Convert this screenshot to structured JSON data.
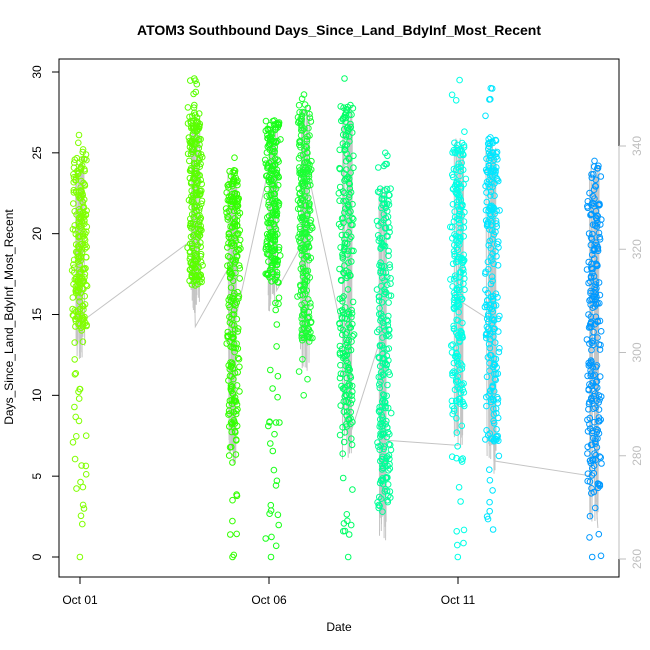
{
  "chart_data": {
    "type": "scatter",
    "title": "ATOM3 Southbound Days_Since_Land_BdyInf_Most_Recent",
    "xlabel": "Date",
    "ylabel": "Days_Since_Land_BdyInf_Most_Recent",
    "xlim": [
      "2023-10-01",
      "2023-10-15"
    ],
    "ylim": [
      0,
      30
    ],
    "y_ticks": [
      0,
      5,
      10,
      15,
      20,
      25,
      30
    ],
    "x_ticks": [
      {
        "date": "2023-10-01",
        "label": "Oct 01"
      },
      {
        "date": "2023-10-06",
        "label": "Oct 06"
      },
      {
        "date": "2023-10-11",
        "label": "Oct 11"
      }
    ],
    "y2lim": [
      260,
      342
    ],
    "y2_ticks": [
      260,
      280,
      300,
      320,
      340
    ],
    "secondary_line_color": "#c4c4c4",
    "grid": false,
    "clusters": [
      {
        "date": "2023-10-01",
        "color": "#80ff00",
        "y_min": 0,
        "y_max": 26.1,
        "dense_min": 14,
        "dense_max": 25
      },
      {
        "date": "2023-10-04.05",
        "color": "#5aff00",
        "y_min": 16.8,
        "y_max": 29.6,
        "dense_min": 17,
        "dense_max": 27
      },
      {
        "date": "2023-10-05.05",
        "color": "#33ff00",
        "y_min": 0,
        "y_max": 24.7,
        "dense_min": 7.5,
        "dense_max": 24
      },
      {
        "date": "2023-10-06.1",
        "color": "#1aff1a",
        "y_min": 0,
        "y_max": 27,
        "dense_min": 17,
        "dense_max": 27
      },
      {
        "date": "2023-10-06.95",
        "color": "#1aff33",
        "y_min": 10,
        "y_max": 28.6,
        "dense_min": 13.5,
        "dense_max": 28
      },
      {
        "date": "2023-10-08.05",
        "color": "#00ff66",
        "y_min": 0,
        "y_max": 29.6,
        "dense_min": 8,
        "dense_max": 28
      },
      {
        "date": "2023-10-09.05",
        "color": "#00ff99",
        "y_min": 2.8,
        "y_max": 25,
        "dense_min": 3,
        "dense_max": 23
      },
      {
        "date": "2023-10-11",
        "color": "#00ffe6",
        "y_min": 0,
        "y_max": 29.5,
        "dense_min": 8.5,
        "dense_max": 26
      },
      {
        "date": "2023-10-11.9",
        "color": "#00e6ff",
        "y_min": 1.7,
        "y_max": 29,
        "dense_min": 7,
        "dense_max": 26
      },
      {
        "date": "2023-10-14.6",
        "color": "#0099ff",
        "y_min": 0,
        "y_max": 24.5,
        "dense_min": 4,
        "dense_max": 24.5
      }
    ],
    "secondary_path": [
      {
        "date": "2023-10-01",
        "y2": 300
      },
      {
        "date": "2023-10-01.05",
        "y2": 306
      },
      {
        "date": "2023-10-04.0",
        "y2": 322
      },
      {
        "date": "2023-10-04.05",
        "y2": 305
      },
      {
        "date": "2023-10-05.05",
        "y2": 318
      },
      {
        "date": "2023-10-05.1",
        "y2": 306
      },
      {
        "date": "2023-10-06.0",
        "y2": 336
      },
      {
        "date": "2023-10-06.1",
        "y2": 330
      },
      {
        "date": "2023-10-06.2",
        "y2": 312
      },
      {
        "date": "2023-10-06.95",
        "y2": 322
      },
      {
        "date": "2023-10-07.0",
        "y2": 336
      },
      {
        "date": "2023-10-08.05",
        "y2": 300
      },
      {
        "date": "2023-10-08.1",
        "y2": 283
      },
      {
        "date": "2023-10-09.05",
        "y2": 305
      },
      {
        "date": "2023-10-09.1",
        "y2": 283
      },
      {
        "date": "2023-10-11.0",
        "y2": 282
      },
      {
        "date": "2023-10-11.05",
        "y2": 310
      },
      {
        "date": "2023-10-11.9",
        "y2": 306
      },
      {
        "date": "2023-10-11.95",
        "y2": 279
      },
      {
        "date": "2023-10-14.6",
        "y2": 276
      },
      {
        "date": "2023-10-14.7",
        "y2": 266
      }
    ]
  }
}
